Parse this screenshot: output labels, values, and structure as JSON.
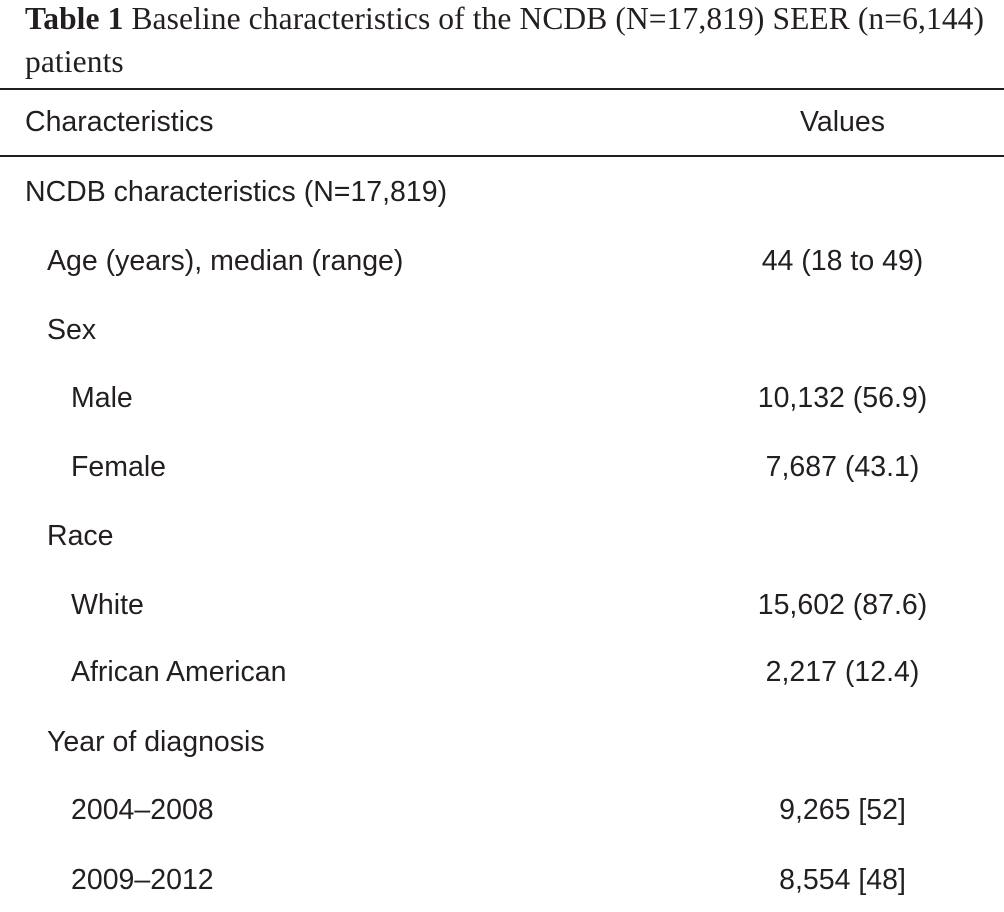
{
  "table": {
    "caption_label": "Table 1",
    "caption_text": "Baseline characteristics of the NCDB (N=17,819) SEER (n=6,144) patients",
    "header": {
      "characteristics": "Characteristics",
      "values": "Values"
    },
    "rows": [
      {
        "label": "NCDB characteristics (N=17,819)",
        "value": "",
        "indent": 0
      },
      {
        "label": "Age (years), median (range)",
        "value": "44 (18 to 49)",
        "indent": 1
      },
      {
        "label": "Sex",
        "value": "",
        "indent": 1
      },
      {
        "label": "Male",
        "value": "10,132 (56.9)",
        "indent": 2
      },
      {
        "label": "Female",
        "value": "7,687 (43.1)",
        "indent": 2
      },
      {
        "label": "Race",
        "value": "",
        "indent": 1
      },
      {
        "label": "White",
        "value": "15,602 (87.6)",
        "indent": 2
      },
      {
        "label": "African American",
        "value": "2,217 (12.4)",
        "indent": 2
      },
      {
        "label": "Year of diagnosis",
        "value": "",
        "indent": 1
      },
      {
        "label": "2004–2008",
        "value": "9,265 [52]",
        "indent": 2
      },
      {
        "label": "2009–2012",
        "value": "8,554 [48]",
        "indent": 2
      }
    ]
  }
}
